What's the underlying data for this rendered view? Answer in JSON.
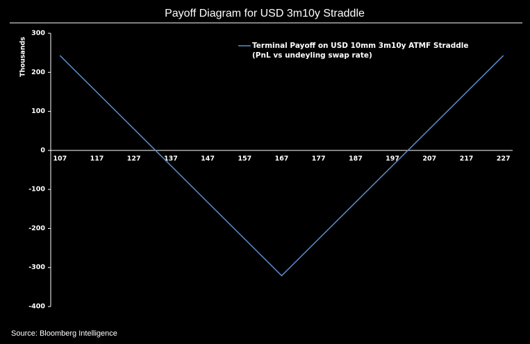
{
  "chart_data": {
    "type": "line",
    "title": "Payoff Diagram for USD 3m10y Straddle",
    "y_label": "Thousands",
    "x": [
      107,
      167,
      227
    ],
    "series": [
      {
        "name": "Terminal Payoff on USD 10mm 3m10y ATMF Straddle",
        "color": "#5b8fd0",
        "values": [
          243,
          -321,
          243
        ]
      }
    ],
    "legend_note": "(PnL vs undeyling swap rate)",
    "xlim": [
      104.5,
      229.5
    ],
    "xticks": [
      107,
      117,
      127,
      137,
      147,
      157,
      167,
      177,
      187,
      197,
      207,
      217,
      227
    ],
    "ylim": [
      -400,
      300
    ],
    "yticks": [
      300,
      200,
      100,
      0,
      -100,
      -200,
      -300,
      -400
    ],
    "grid": false,
    "legend": "top-right",
    "source": "Source: Bloomberg Intelligence"
  }
}
